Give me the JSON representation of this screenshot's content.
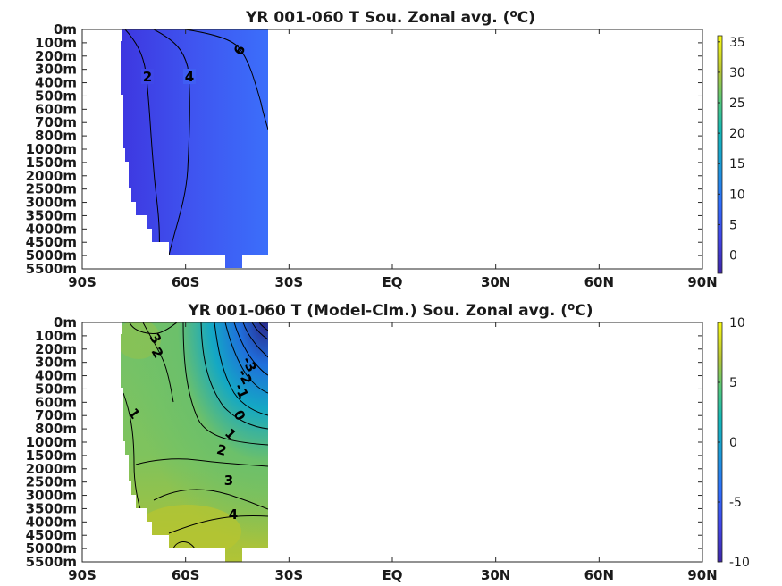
{
  "chart_data": [
    {
      "type": "heatmap",
      "title": "YR 001-060 T Sou. Zonal avg. (°C)",
      "title_parts": {
        "before": "YR 001-060 T Sou. Zonal avg. (",
        "sup": "o",
        "after": "C)"
      },
      "x_ticks": [
        "90S",
        "60S",
        "30S",
        "EQ",
        "30N",
        "60N",
        "90N"
      ],
      "y_ticks": [
        "0m",
        "100m",
        "200m",
        "300m",
        "400m",
        "500m",
        "600m",
        "700m",
        "800m",
        "1000m",
        "1500m",
        "2000m",
        "2500m",
        "3000m",
        "3500m",
        "4000m",
        "4500m",
        "5000m",
        "5500m"
      ],
      "colorbar": {
        "ticks": [
          "0",
          "5",
          "10",
          "15",
          "20",
          "25",
          "30",
          "35"
        ],
        "range": [
          -3,
          36
        ]
      },
      "data_extent_lat": [
        -78,
        -36
      ],
      "contours": [
        {
          "level": 2,
          "label": "2"
        },
        {
          "level": 4,
          "label": "4"
        },
        {
          "level": 6,
          "label": "6"
        }
      ],
      "colors": {
        "deep": "#3d35df",
        "mid": "#3f55f0",
        "warm": "#3b70fb"
      }
    },
    {
      "type": "heatmap",
      "title": "YR 001-060 T (Model-Clm.) Sou. Zonal avg. (°C)",
      "title_parts": {
        "before": "YR 001-060 T (Model-Clm.) Sou. Zonal avg. (",
        "sup": "o",
        "after": "C)"
      },
      "x_ticks": [
        "90S",
        "60S",
        "30S",
        "EQ",
        "30N",
        "60N",
        "90N"
      ],
      "y_ticks": [
        "0m",
        "100m",
        "200m",
        "300m",
        "400m",
        "500m",
        "600m",
        "700m",
        "800m",
        "1000m",
        "1500m",
        "2000m",
        "2500m",
        "3000m",
        "3500m",
        "4000m",
        "4500m",
        "5000m",
        "5500m"
      ],
      "colorbar": {
        "ticks": [
          "10",
          "5",
          "0",
          "-5",
          "-10"
        ],
        "range": [
          -10,
          10
        ]
      },
      "data_extent_lat": [
        -78,
        -36
      ],
      "contours": [
        {
          "level": 3,
          "label": "3"
        },
        {
          "level": 2,
          "label": "2"
        },
        {
          "level": 1,
          "label": "1"
        },
        {
          "level": -3,
          "label": "-3"
        },
        {
          "level": -2,
          "label": "-2"
        },
        {
          "level": -1,
          "label": "-1"
        },
        {
          "level": 0,
          "label": "0"
        },
        {
          "level": 1,
          "label": "1"
        },
        {
          "level": 2,
          "label": "2"
        },
        {
          "level": 3,
          "label": "3"
        },
        {
          "level": 4,
          "label": "4"
        }
      ],
      "colors": {
        "high": "#a9c332",
        "mid": "#6cc06a",
        "low": "#14a8c4",
        "min": "#2a2c8f"
      }
    }
  ]
}
